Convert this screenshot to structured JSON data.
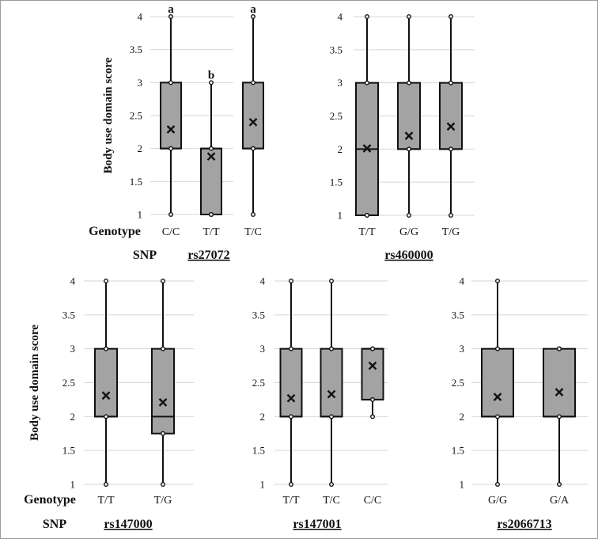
{
  "chart_data": [
    {
      "type": "box",
      "snp": "rs27072",
      "ylabel": "Body use domain score",
      "ylim": [
        1,
        4
      ],
      "yticks": [
        "1",
        "1.5",
        "2",
        "2.5",
        "3",
        "3.5",
        "4"
      ],
      "row_label": "Genotype",
      "snp_label": "SNP",
      "boxes": [
        {
          "genotype": "C/C",
          "min": 1,
          "q1": 2,
          "median": 2,
          "q3": 3,
          "max": 4,
          "mean": 2.29,
          "outliers": [],
          "sig": "a"
        },
        {
          "genotype": "T/T",
          "min": 1,
          "q1": 1,
          "median": 2,
          "q3": 2,
          "max": 3,
          "mean": 1.88,
          "outliers": [],
          "sig": "b"
        },
        {
          "genotype": "T/C",
          "min": 1,
          "q1": 2,
          "median": 2,
          "q3": 3,
          "max": 4,
          "mean": 2.4,
          "outliers": [],
          "sig": "a"
        }
      ]
    },
    {
      "type": "box",
      "snp": "rs460000",
      "ylim": [
        1,
        4
      ],
      "yticks": [
        "1",
        "1.5",
        "2",
        "2.5",
        "3",
        "3.5",
        "4"
      ],
      "boxes": [
        {
          "genotype": "T/T",
          "min": 1,
          "q1": 1,
          "median": 2,
          "q3": 3,
          "max": 4,
          "mean": 2.01,
          "outliers": []
        },
        {
          "genotype": "G/G",
          "min": 1,
          "q1": 2,
          "median": 2,
          "q3": 3,
          "max": 4,
          "mean": 2.2,
          "outliers": []
        },
        {
          "genotype": "T/G",
          "min": 1,
          "q1": 2,
          "median": 2,
          "q3": 3,
          "max": 4,
          "mean": 2.34,
          "outliers": []
        }
      ]
    },
    {
      "type": "box",
      "snp": "rs147000",
      "ylabel": "Body use domain score",
      "ylim": [
        1,
        4
      ],
      "yticks": [
        "1",
        "1.5",
        "2",
        "2.5",
        "3",
        "3.5",
        "4"
      ],
      "row_label": "Genotype",
      "snp_label": "SNP",
      "boxes": [
        {
          "genotype": "T/T",
          "min": 1,
          "q1": 2,
          "median": 2,
          "q3": 3,
          "max": 4,
          "mean": 2.31,
          "outliers": []
        },
        {
          "genotype": "T/G",
          "min": 1,
          "q1": 1.75,
          "median": 2,
          "q3": 3,
          "max": 4,
          "mean": 2.21,
          "outliers": []
        }
      ]
    },
    {
      "type": "box",
      "snp": "rs147001",
      "ylim": [
        1,
        4
      ],
      "yticks": [
        "1",
        "1.5",
        "2",
        "2.5",
        "3",
        "3.5",
        "4"
      ],
      "boxes": [
        {
          "genotype": "T/T",
          "min": 1,
          "q1": 2,
          "median": 2,
          "q3": 3,
          "max": 4,
          "mean": 2.27,
          "outliers": []
        },
        {
          "genotype": "T/C",
          "min": 1,
          "q1": 2,
          "median": 2,
          "q3": 3,
          "max": 4,
          "mean": 2.33,
          "outliers": []
        },
        {
          "genotype": "C/C",
          "min": 2,
          "q1": 2.25,
          "median": 3,
          "q3": 3,
          "max": 3,
          "mean": 2.75,
          "outliers": []
        }
      ]
    },
    {
      "type": "box",
      "snp": "rs2066713",
      "ylim": [
        1,
        4
      ],
      "yticks": [
        "1",
        "1.5",
        "2",
        "2.5",
        "3",
        "3.5",
        "4"
      ],
      "boxes": [
        {
          "genotype": "G/G",
          "min": 1,
          "q1": 2,
          "median": 2,
          "q3": 3,
          "max": 4,
          "mean": 2.29,
          "outliers": []
        },
        {
          "genotype": "G/A",
          "min": 1,
          "q1": 2,
          "median": 2,
          "q3": 3,
          "max": 3,
          "mean": 2.36,
          "outliers": []
        }
      ]
    }
  ],
  "colors": {
    "box_fill": "#a3a3a3",
    "stroke": "#111111",
    "grid": "#d6d6d6",
    "border": "#9a9a9a"
  }
}
